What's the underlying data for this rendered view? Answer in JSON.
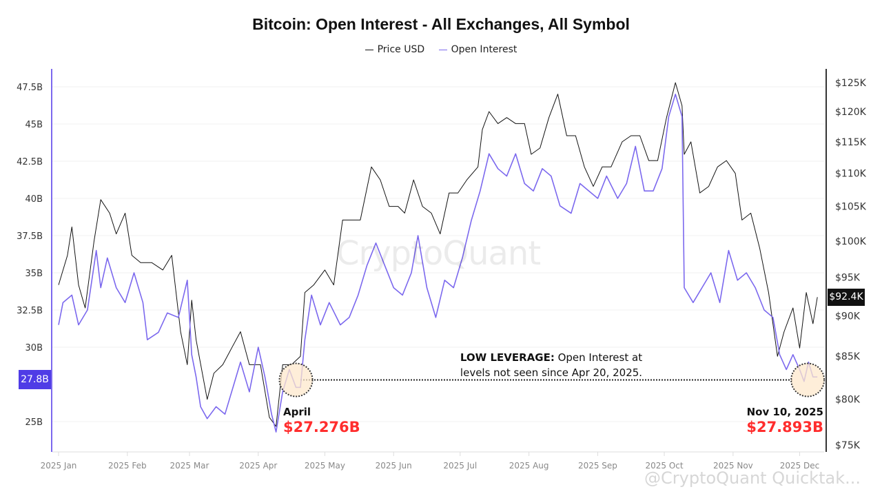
{
  "chart_data": {
    "type": "line",
    "title": "Bitcoin: Open Interest - All Exchanges, All Symbol",
    "legend_position": "top",
    "grid": true,
    "x_ticks": [
      "2025 Jan",
      "2025 Feb",
      "2025 Mar",
      "2025 Apr",
      "2025 May",
      "2025 Jun",
      "2025 Jul",
      "2025 Aug",
      "2025 Sep",
      "2025 Oct",
      "2025 Nov",
      "2025 Dec"
    ],
    "y_left_ticks": [
      "47.5B",
      "45B",
      "42.5B",
      "40B",
      "37.5B",
      "35B",
      "32.5B",
      "30B",
      "25B"
    ],
    "y_left_range": [
      22.5,
      48.5
    ],
    "y_right_ticks": [
      "$125K",
      "$120K",
      "$115K",
      "$110K",
      "$105K",
      "$100K",
      "$95K",
      "$90K",
      "$85K",
      "$80K",
      "$75K"
    ],
    "y_right_scale": "log",
    "y_right_range": [
      73,
      128
    ],
    "series": [
      {
        "name": "Price USD",
        "axis": "right",
        "unit": "K USD",
        "color": "#111111",
        "points": [
          [
            "2025-01-01",
            94
          ],
          [
            "2025-01-05",
            98
          ],
          [
            "2025-01-07",
            102
          ],
          [
            "2025-01-10",
            94
          ],
          [
            "2025-01-13",
            91
          ],
          [
            "2025-01-17",
            100
          ],
          [
            "2025-01-20",
            106
          ],
          [
            "2025-01-24",
            104
          ],
          [
            "2025-01-27",
            101
          ],
          [
            "2025-01-31",
            104
          ],
          [
            "2025-02-03",
            98
          ],
          [
            "2025-02-07",
            97
          ],
          [
            "2025-02-12",
            97
          ],
          [
            "2025-02-17",
            96
          ],
          [
            "2025-02-21",
            98
          ],
          [
            "2025-02-25",
            88
          ],
          [
            "2025-02-28",
            84
          ],
          [
            "2025-03-02",
            92
          ],
          [
            "2025-03-04",
            87
          ],
          [
            "2025-03-09",
            80
          ],
          [
            "2025-03-12",
            83
          ],
          [
            "2025-03-16",
            84
          ],
          [
            "2025-03-20",
            86
          ],
          [
            "2025-03-24",
            88
          ],
          [
            "2025-03-28",
            84
          ],
          [
            "2025-04-02",
            84
          ],
          [
            "2025-04-06",
            78
          ],
          [
            "2025-04-09",
            77
          ],
          [
            "2025-04-12",
            84
          ],
          [
            "2025-04-16",
            84
          ],
          [
            "2025-04-20",
            85
          ],
          [
            "2025-04-22",
            93
          ],
          [
            "2025-04-26",
            94
          ],
          [
            "2025-05-01",
            96
          ],
          [
            "2025-05-05",
            94
          ],
          [
            "2025-05-09",
            103
          ],
          [
            "2025-05-13",
            103
          ],
          [
            "2025-05-17",
            103
          ],
          [
            "2025-05-22",
            111
          ],
          [
            "2025-05-26",
            109
          ],
          [
            "2025-05-30",
            105
          ],
          [
            "2025-06-03",
            105
          ],
          [
            "2025-06-06",
            104
          ],
          [
            "2025-06-10",
            109
          ],
          [
            "2025-06-14",
            105
          ],
          [
            "2025-06-18",
            104
          ],
          [
            "2025-06-22",
            101
          ],
          [
            "2025-06-26",
            107
          ],
          [
            "2025-06-30",
            107
          ],
          [
            "2025-07-04",
            109
          ],
          [
            "2025-07-09",
            111
          ],
          [
            "2025-07-11",
            117
          ],
          [
            "2025-07-14",
            120
          ],
          [
            "2025-07-18",
            118
          ],
          [
            "2025-07-22",
            119
          ],
          [
            "2025-07-26",
            118
          ],
          [
            "2025-07-30",
            118
          ],
          [
            "2025-08-02",
            113
          ],
          [
            "2025-08-06",
            114
          ],
          [
            "2025-08-10",
            119
          ],
          [
            "2025-08-14",
            123
          ],
          [
            "2025-08-18",
            116
          ],
          [
            "2025-08-22",
            116
          ],
          [
            "2025-08-26",
            111
          ],
          [
            "2025-08-30",
            108
          ],
          [
            "2025-09-03",
            111
          ],
          [
            "2025-09-07",
            111
          ],
          [
            "2025-09-12",
            115
          ],
          [
            "2025-09-16",
            116
          ],
          [
            "2025-09-20",
            116
          ],
          [
            "2025-09-24",
            112
          ],
          [
            "2025-09-28",
            112
          ],
          [
            "2025-10-02",
            119
          ],
          [
            "2025-10-06",
            125
          ],
          [
            "2025-10-09",
            121
          ],
          [
            "2025-10-10",
            113
          ],
          [
            "2025-10-13",
            115
          ],
          [
            "2025-10-17",
            107
          ],
          [
            "2025-10-21",
            108
          ],
          [
            "2025-10-25",
            111
          ],
          [
            "2025-10-29",
            112
          ],
          [
            "2025-11-02",
            110
          ],
          [
            "2025-11-05",
            103
          ],
          [
            "2025-11-09",
            104
          ],
          [
            "2025-11-13",
            99
          ],
          [
            "2025-11-17",
            93
          ],
          [
            "2025-11-21",
            85
          ],
          [
            "2025-11-24",
            88
          ],
          [
            "2025-11-28",
            91
          ],
          [
            "2025-12-01",
            86
          ],
          [
            "2025-12-04",
            93
          ],
          [
            "2025-12-07",
            89
          ],
          [
            "2025-12-09",
            92.4
          ]
        ]
      },
      {
        "name": "Open Interest",
        "axis": "left",
        "unit": "B USD",
        "color": "#7b68ee",
        "points": [
          [
            "2025-01-01",
            31.5
          ],
          [
            "2025-01-03",
            33
          ],
          [
            "2025-01-07",
            33.5
          ],
          [
            "2025-01-10",
            31.5
          ],
          [
            "2025-01-14",
            32.5
          ],
          [
            "2025-01-18",
            36.5
          ],
          [
            "2025-01-20",
            34
          ],
          [
            "2025-01-23",
            36
          ],
          [
            "2025-01-27",
            34
          ],
          [
            "2025-01-31",
            33
          ],
          [
            "2025-02-04",
            35
          ],
          [
            "2025-02-08",
            33
          ],
          [
            "2025-02-10",
            30.5
          ],
          [
            "2025-02-15",
            31
          ],
          [
            "2025-02-19",
            32.3
          ],
          [
            "2025-02-24",
            32
          ],
          [
            "2025-02-28",
            34.5
          ],
          [
            "2025-03-02",
            29.5
          ],
          [
            "2025-03-04",
            28
          ],
          [
            "2025-03-06",
            26
          ],
          [
            "2025-03-09",
            25.2
          ],
          [
            "2025-03-13",
            26
          ],
          [
            "2025-03-17",
            25.5
          ],
          [
            "2025-03-21",
            27.5
          ],
          [
            "2025-03-24",
            29
          ],
          [
            "2025-03-28",
            27
          ],
          [
            "2025-04-01",
            30
          ],
          [
            "2025-04-04",
            28
          ],
          [
            "2025-04-07",
            25.5
          ],
          [
            "2025-04-09",
            24.3
          ],
          [
            "2025-04-12",
            27
          ],
          [
            "2025-04-15",
            28.5
          ],
          [
            "2025-04-18",
            27.3
          ],
          [
            "2025-04-20",
            27.3
          ],
          [
            "2025-04-22",
            30.5
          ],
          [
            "2025-04-25",
            33.5
          ],
          [
            "2025-04-29",
            31.5
          ],
          [
            "2025-05-03",
            33
          ],
          [
            "2025-05-08",
            31.5
          ],
          [
            "2025-05-12",
            32
          ],
          [
            "2025-05-16",
            33.5
          ],
          [
            "2025-05-20",
            35.5
          ],
          [
            "2025-05-24",
            37
          ],
          [
            "2025-05-28",
            35.5
          ],
          [
            "2025-06-01",
            34
          ],
          [
            "2025-06-05",
            33.5
          ],
          [
            "2025-06-09",
            35
          ],
          [
            "2025-06-12",
            37.5
          ],
          [
            "2025-06-16",
            34
          ],
          [
            "2025-06-20",
            32
          ],
          [
            "2025-06-24",
            34.5
          ],
          [
            "2025-06-28",
            34
          ],
          [
            "2025-07-02",
            36
          ],
          [
            "2025-07-06",
            38.5
          ],
          [
            "2025-07-10",
            40.5
          ],
          [
            "2025-07-14",
            43
          ],
          [
            "2025-07-18",
            42
          ],
          [
            "2025-07-22",
            41.5
          ],
          [
            "2025-07-26",
            43
          ],
          [
            "2025-07-30",
            41
          ],
          [
            "2025-08-03",
            40.5
          ],
          [
            "2025-08-07",
            42
          ],
          [
            "2025-08-11",
            41.5
          ],
          [
            "2025-08-15",
            39.5
          ],
          [
            "2025-08-20",
            39
          ],
          [
            "2025-08-24",
            41
          ],
          [
            "2025-08-28",
            40.5
          ],
          [
            "2025-09-01",
            40
          ],
          [
            "2025-09-05",
            41.5
          ],
          [
            "2025-09-10",
            40
          ],
          [
            "2025-09-14",
            41
          ],
          [
            "2025-09-18",
            43.5
          ],
          [
            "2025-09-22",
            40.5
          ],
          [
            "2025-09-26",
            40.5
          ],
          [
            "2025-09-30",
            42
          ],
          [
            "2025-10-03",
            45.5
          ],
          [
            "2025-10-06",
            47
          ],
          [
            "2025-10-09",
            45.5
          ],
          [
            "2025-10-10",
            34
          ],
          [
            "2025-10-14",
            33
          ],
          [
            "2025-10-18",
            34
          ],
          [
            "2025-10-22",
            35
          ],
          [
            "2025-10-26",
            33
          ],
          [
            "2025-10-30",
            36.5
          ],
          [
            "2025-11-03",
            34.5
          ],
          [
            "2025-11-07",
            35
          ],
          [
            "2025-11-11",
            34
          ],
          [
            "2025-11-15",
            32.5
          ],
          [
            "2025-11-19",
            32
          ],
          [
            "2025-11-22",
            29.5
          ],
          [
            "2025-11-25",
            28.5
          ],
          [
            "2025-11-28",
            29.5
          ],
          [
            "2025-12-01",
            28.5
          ],
          [
            "2025-12-03",
            27.7
          ],
          [
            "2025-12-05",
            29
          ],
          [
            "2025-12-07",
            28
          ],
          [
            "2025-12-09",
            28
          ]
        ]
      }
    ],
    "current_values": {
      "left": "27.8B",
      "right": "$92.4K"
    },
    "annotations": {
      "headline_bold": "LOW LEVERAGE:",
      "headline_rest": " Open Interest at",
      "headline_line2": "levels not seen since Apr 20, 2025.",
      "left_label": "April",
      "left_value": "$27.276B",
      "right_label": "Nov 10, 2025",
      "right_value": "$27.893B",
      "reference_level": 27.8
    },
    "watermark": "CryptoQuant",
    "footer_watermark": "@CryptoQuant Quicktak..."
  },
  "colors": {
    "oi": "#7b68ee",
    "price": "#111111",
    "highlight": "#ff2d2d",
    "marker_fill": "#fde8cc",
    "left_badge": "#4f3ce6"
  }
}
